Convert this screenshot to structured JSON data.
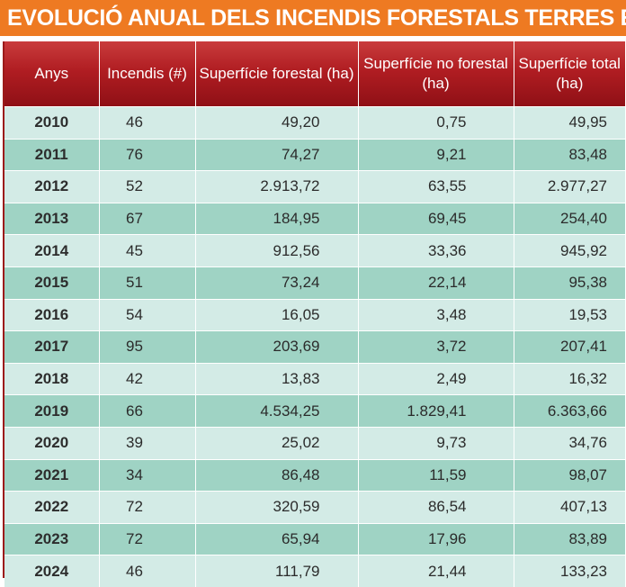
{
  "title": "EVOLUCIÓ ANUAL DELS INCENDIS FORESTALS TERRES EBRE",
  "colors": {
    "title_bg": "#ee7a22",
    "header_bg": "#b01d22",
    "row_light": "#d3ebe6",
    "row_dark": "#9fd3c4"
  },
  "chart_data": {
    "type": "table",
    "title": "EVOLUCIÓ ANUAL DELS INCENDIS FORESTALS TERRES EBRE",
    "columns": [
      "Anys",
      "Incendis (#)",
      "Superfície forestal (ha)",
      "Superfície no forestal (ha)",
      "Superfície total (ha)"
    ],
    "rows": [
      [
        "2010",
        "46",
        "49,20",
        "0,75",
        "49,95"
      ],
      [
        "2011",
        "76",
        "74,27",
        "9,21",
        "83,48"
      ],
      [
        "2012",
        "52",
        "2.913,72",
        "63,55",
        "2.977,27"
      ],
      [
        "2013",
        "67",
        "184,95",
        "69,45",
        "254,40"
      ],
      [
        "2014",
        "45",
        "912,56",
        "33,36",
        "945,92"
      ],
      [
        "2015",
        "51",
        "73,24",
        "22,14",
        "95,38"
      ],
      [
        "2016",
        "54",
        "16,05",
        "3,48",
        "19,53"
      ],
      [
        "2017",
        "95",
        "203,69",
        "3,72",
        "207,41"
      ],
      [
        "2018",
        "42",
        "13,83",
        "2,49",
        "16,32"
      ],
      [
        "2019",
        "66",
        "4.534,25",
        "1.829,41",
        "6.363,66"
      ],
      [
        "2020",
        "39",
        "25,02",
        "9,73",
        "34,76"
      ],
      [
        "2021",
        "34",
        "86,48",
        "11,59",
        "98,07"
      ],
      [
        "2022",
        "72",
        "320,59",
        "86,54",
        "407,13"
      ],
      [
        "2023",
        "72",
        "65,94",
        "17,96",
        "83,89"
      ],
      [
        "2024",
        "46",
        "111,79",
        "21,44",
        "133,23"
      ]
    ]
  }
}
